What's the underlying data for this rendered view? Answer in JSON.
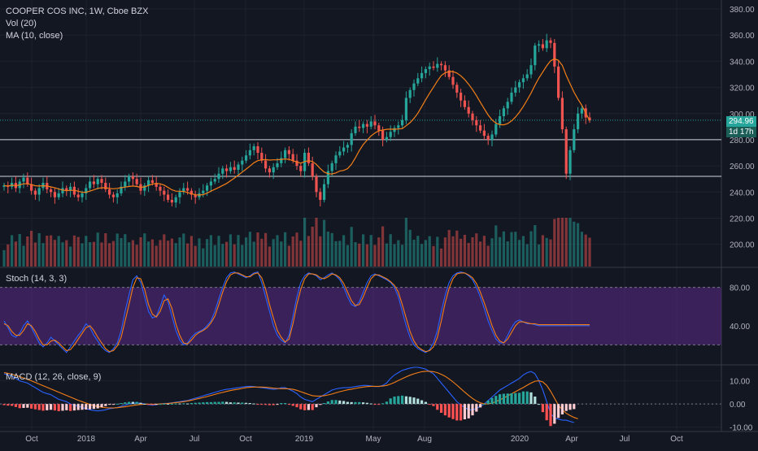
{
  "header": {
    "symbol": "COOPER COS INC, 1W, Cboe BZX",
    "volume_label": "Vol (20)",
    "ma_label": "MA (10, close)"
  },
  "price_tags": {
    "last_price": "294.96",
    "countdown": "1d 17h"
  },
  "colors": {
    "background": "#131722",
    "up": "#26a69a",
    "down": "#ef5350",
    "ma": "#f57f17",
    "stoch_band": "#5b2a86",
    "k_line": "#2962ff",
    "d_line": "#f57f17",
    "h_line": "#d1d4dc"
  },
  "chart_data": [
    {
      "type": "candlestick",
      "name": "price",
      "y_axis": {
        "ticks": [
          "380.00",
          "360.00",
          "340.00",
          "320.00",
          "300.00",
          "280.00",
          "260.00",
          "240.00",
          "220.00",
          "200.00"
        ],
        "range": [
          183,
          385
        ]
      },
      "x_axis": {
        "ticks": [
          "Oct",
          "2018",
          "Apr",
          "Jul",
          "Oct",
          "2019",
          "May",
          "Aug",
          "2020",
          "Apr",
          "Jul",
          "Oct"
        ]
      },
      "horizontal_lines": [
        280,
        252
      ],
      "last_price": 294.96,
      "closes": [
        245,
        244,
        247,
        243,
        248,
        251,
        246,
        241,
        238,
        243,
        247,
        242,
        240,
        236,
        239,
        243,
        241,
        244,
        238,
        236,
        239,
        243,
        248,
        246,
        250,
        247,
        242,
        238,
        236,
        239,
        244,
        248,
        252,
        250,
        246,
        241,
        245,
        249,
        247,
        244,
        241,
        238,
        234,
        232,
        236,
        240,
        243,
        241,
        238,
        236,
        239,
        241,
        245,
        248,
        250,
        254,
        258,
        256,
        259,
        257,
        261,
        264,
        268,
        272,
        275,
        270,
        264,
        258,
        255,
        259,
        262,
        266,
        272,
        269,
        264,
        260,
        256,
        270,
        262,
        252,
        240,
        234,
        246,
        256,
        262,
        268,
        271,
        274,
        276,
        285,
        290,
        289,
        292,
        290,
        294,
        291,
        287,
        280,
        282,
        286,
        289,
        291,
        295,
        312,
        318,
        323,
        327,
        331,
        334,
        336,
        335,
        338,
        337,
        333,
        328,
        322,
        316,
        310,
        305,
        300,
        295,
        291,
        287,
        283,
        280,
        284,
        292,
        298,
        304,
        309,
        316,
        320,
        324,
        327,
        330,
        337,
        352,
        353,
        350,
        356,
        354,
        336,
        312,
        288,
        254,
        272,
        288,
        300,
        304,
        297,
        294.96
      ],
      "volume_series_name": "Vol (20)",
      "ma_series_name": "MA (10, close)"
    },
    {
      "type": "line",
      "name": "Stoch (14, 3, 3)",
      "y_ticks": [
        "80.00",
        "40.00"
      ],
      "range": [
        0,
        100
      ],
      "band": [
        20,
        80
      ],
      "k": [
        45,
        38,
        30,
        28,
        32,
        40,
        45,
        38,
        30,
        22,
        18,
        22,
        28,
        24,
        20,
        16,
        12,
        18,
        24,
        30,
        35,
        42,
        38,
        30,
        24,
        18,
        14,
        12,
        16,
        22,
        35,
        55,
        72,
        88,
        92,
        85,
        70,
        55,
        48,
        50,
        60,
        72,
        65,
        50,
        35,
        25,
        20,
        22,
        28,
        32,
        34,
        36,
        40,
        45,
        55,
        68,
        80,
        90,
        95,
        96,
        94,
        92,
        90,
        92,
        95,
        96,
        85,
        70,
        55,
        40,
        30,
        25,
        22,
        30,
        50,
        70,
        85,
        92,
        95,
        94,
        92,
        88,
        90,
        93,
        95,
        92,
        88,
        80,
        70,
        62,
        60,
        65,
        75,
        85,
        92,
        94,
        92,
        90,
        88,
        85,
        80,
        70,
        55,
        40,
        28,
        20,
        16,
        14,
        12,
        15,
        22,
        35,
        55,
        72,
        85,
        92,
        95,
        96,
        95,
        92,
        88,
        80,
        70,
        58,
        45,
        35,
        26,
        22,
        22,
        30,
        38,
        44,
        46,
        44,
        42,
        42,
        41,
        40,
        40,
        40,
        40,
        40,
        40,
        40,
        40,
        40,
        40,
        40,
        40,
        40,
        40
      ],
      "d": [
        42,
        40,
        34,
        30,
        30,
        35,
        42,
        40,
        34,
        26,
        20,
        20,
        24,
        25,
        22,
        18,
        14,
        15,
        20,
        26,
        32,
        38,
        40,
        35,
        28,
        22,
        16,
        13,
        14,
        19,
        28,
        45,
        62,
        80,
        90,
        89,
        78,
        62,
        52,
        49,
        55,
        66,
        68,
        58,
        42,
        30,
        22,
        21,
        25,
        30,
        33,
        35,
        38,
        43,
        50,
        62,
        75,
        86,
        93,
        95,
        95,
        93,
        91,
        91,
        94,
        95,
        90,
        78,
        62,
        48,
        35,
        28,
        23,
        26,
        42,
        62,
        78,
        89,
        94,
        94,
        93,
        90,
        89,
        91,
        94,
        93,
        90,
        84,
        75,
        66,
        61,
        62,
        70,
        80,
        89,
        93,
        93,
        91,
        89,
        86,
        82,
        75,
        62,
        48,
        34,
        24,
        18,
        15,
        13,
        14,
        18,
        28,
        45,
        64,
        79,
        89,
        94,
        95,
        95,
        93,
        90,
        84,
        75,
        64,
        52,
        40,
        30,
        24,
        22,
        26,
        33,
        40,
        44,
        44,
        43,
        42,
        42,
        41,
        41,
        41,
        41,
        41,
        41,
        41,
        41,
        41,
        41,
        41,
        41,
        41,
        41
      ]
    },
    {
      "type": "line",
      "name": "MACD (12, 26, close, 9)",
      "y_ticks": [
        "10.00",
        "0.00",
        "-10.00"
      ],
      "range": [
        -11.5,
        16.5
      ],
      "macd": [
        13,
        12.5,
        12,
        11,
        10,
        9.5,
        9,
        8,
        7,
        6,
        5,
        4.5,
        4,
        3,
        2,
        1.5,
        1,
        0,
        -0.5,
        -1,
        -1.5,
        -2,
        -2.5,
        -2.8,
        -3,
        -2.8,
        -2.5,
        -2,
        -1.8,
        -1.5,
        -1,
        -0.5,
        0,
        0.3,
        0.5,
        0.3,
        0,
        -0.3,
        -0.5,
        -0.3,
        0,
        0.2,
        0.3,
        0.5,
        0.8,
        1,
        1.3,
        1.5,
        2,
        2.5,
        3,
        3.5,
        4,
        4.5,
        5,
        5.5,
        6,
        6.3,
        6.5,
        6.8,
        7,
        7.3,
        7.5,
        7.6,
        7.5,
        7.2,
        7,
        6.8,
        6.5,
        6.3,
        6.5,
        7,
        7,
        6.3,
        5.5,
        4.5,
        3,
        2,
        1.5,
        1,
        2,
        3,
        4,
        5,
        6,
        6.5,
        6.8,
        7,
        7,
        7.2,
        7.5,
        7.8,
        8,
        8,
        7.8,
        7.5,
        7.5,
        8,
        9,
        11,
        12.5,
        13.5,
        14.5,
        15,
        15.5,
        15.8,
        15.8,
        15.5,
        15,
        14,
        13,
        11,
        9,
        7,
        5,
        3,
        1,
        -0.5,
        -1.5,
        -2.5,
        -2.5,
        -2,
        -1,
        0,
        1.5,
        3,
        4.5,
        6,
        7,
        8,
        9,
        10,
        11,
        12.5,
        13.5,
        14,
        13,
        10,
        6,
        1,
        -4,
        -6,
        -6.5,
        -7,
        -7,
        -7.5,
        -8
      ],
      "signal": [
        13.5,
        13.2,
        12.8,
        12.3,
        11.8,
        11.2,
        10.6,
        10,
        9.3,
        8.6,
        7.9,
        7.2,
        6.5,
        5.8,
        5.1,
        4.4,
        3.7,
        3,
        2.3,
        1.6,
        1,
        0.4,
        -0.2,
        -0.7,
        -1.1,
        -1.4,
        -1.6,
        -1.7,
        -1.7,
        -1.6,
        -1.4,
        -1.2,
        -0.9,
        -0.6,
        -0.4,
        -0.2,
        -0.1,
        -0.1,
        -0.1,
        -0.1,
        0,
        0.1,
        0.2,
        0.4,
        0.6,
        0.8,
        1,
        1.3,
        1.6,
        2,
        2.4,
        2.8,
        3.2,
        3.7,
        4.1,
        4.6,
        5,
        5.4,
        5.8,
        6.1,
        6.4,
        6.7,
        7,
        7.2,
        7.3,
        7.3,
        7.3,
        7.2,
        7,
        6.8,
        6.7,
        6.6,
        6.6,
        6.5,
        6.3,
        5.9,
        5.3,
        4.7,
        4.1,
        3.6,
        3.4,
        3.4,
        3.6,
        3.9,
        4.3,
        4.8,
        5.3,
        5.7,
        6.1,
        6.4,
        6.7,
        7,
        7.3,
        7.5,
        7.6,
        7.6,
        7.6,
        7.7,
        8,
        8.6,
        9.3,
        10.1,
        10.9,
        11.7,
        12.4,
        13,
        13.5,
        13.9,
        14.1,
        14.1,
        13.9,
        13.5,
        12.8,
        11.9,
        10.8,
        9.5,
        8.1,
        6.6,
        5.1,
        3.7,
        2.4,
        1.3,
        0.5,
        0,
        0,
        0.4,
        1,
        1.8,
        2.6,
        3.5,
        4.4,
        5.3,
        6.2,
        7.1,
        8.1,
        9,
        9.8,
        10,
        9.5,
        8,
        5.5,
        2.5,
        -0.5,
        -2.5,
        -4,
        -5,
        -5.8,
        -6.4
      ]
    }
  ]
}
